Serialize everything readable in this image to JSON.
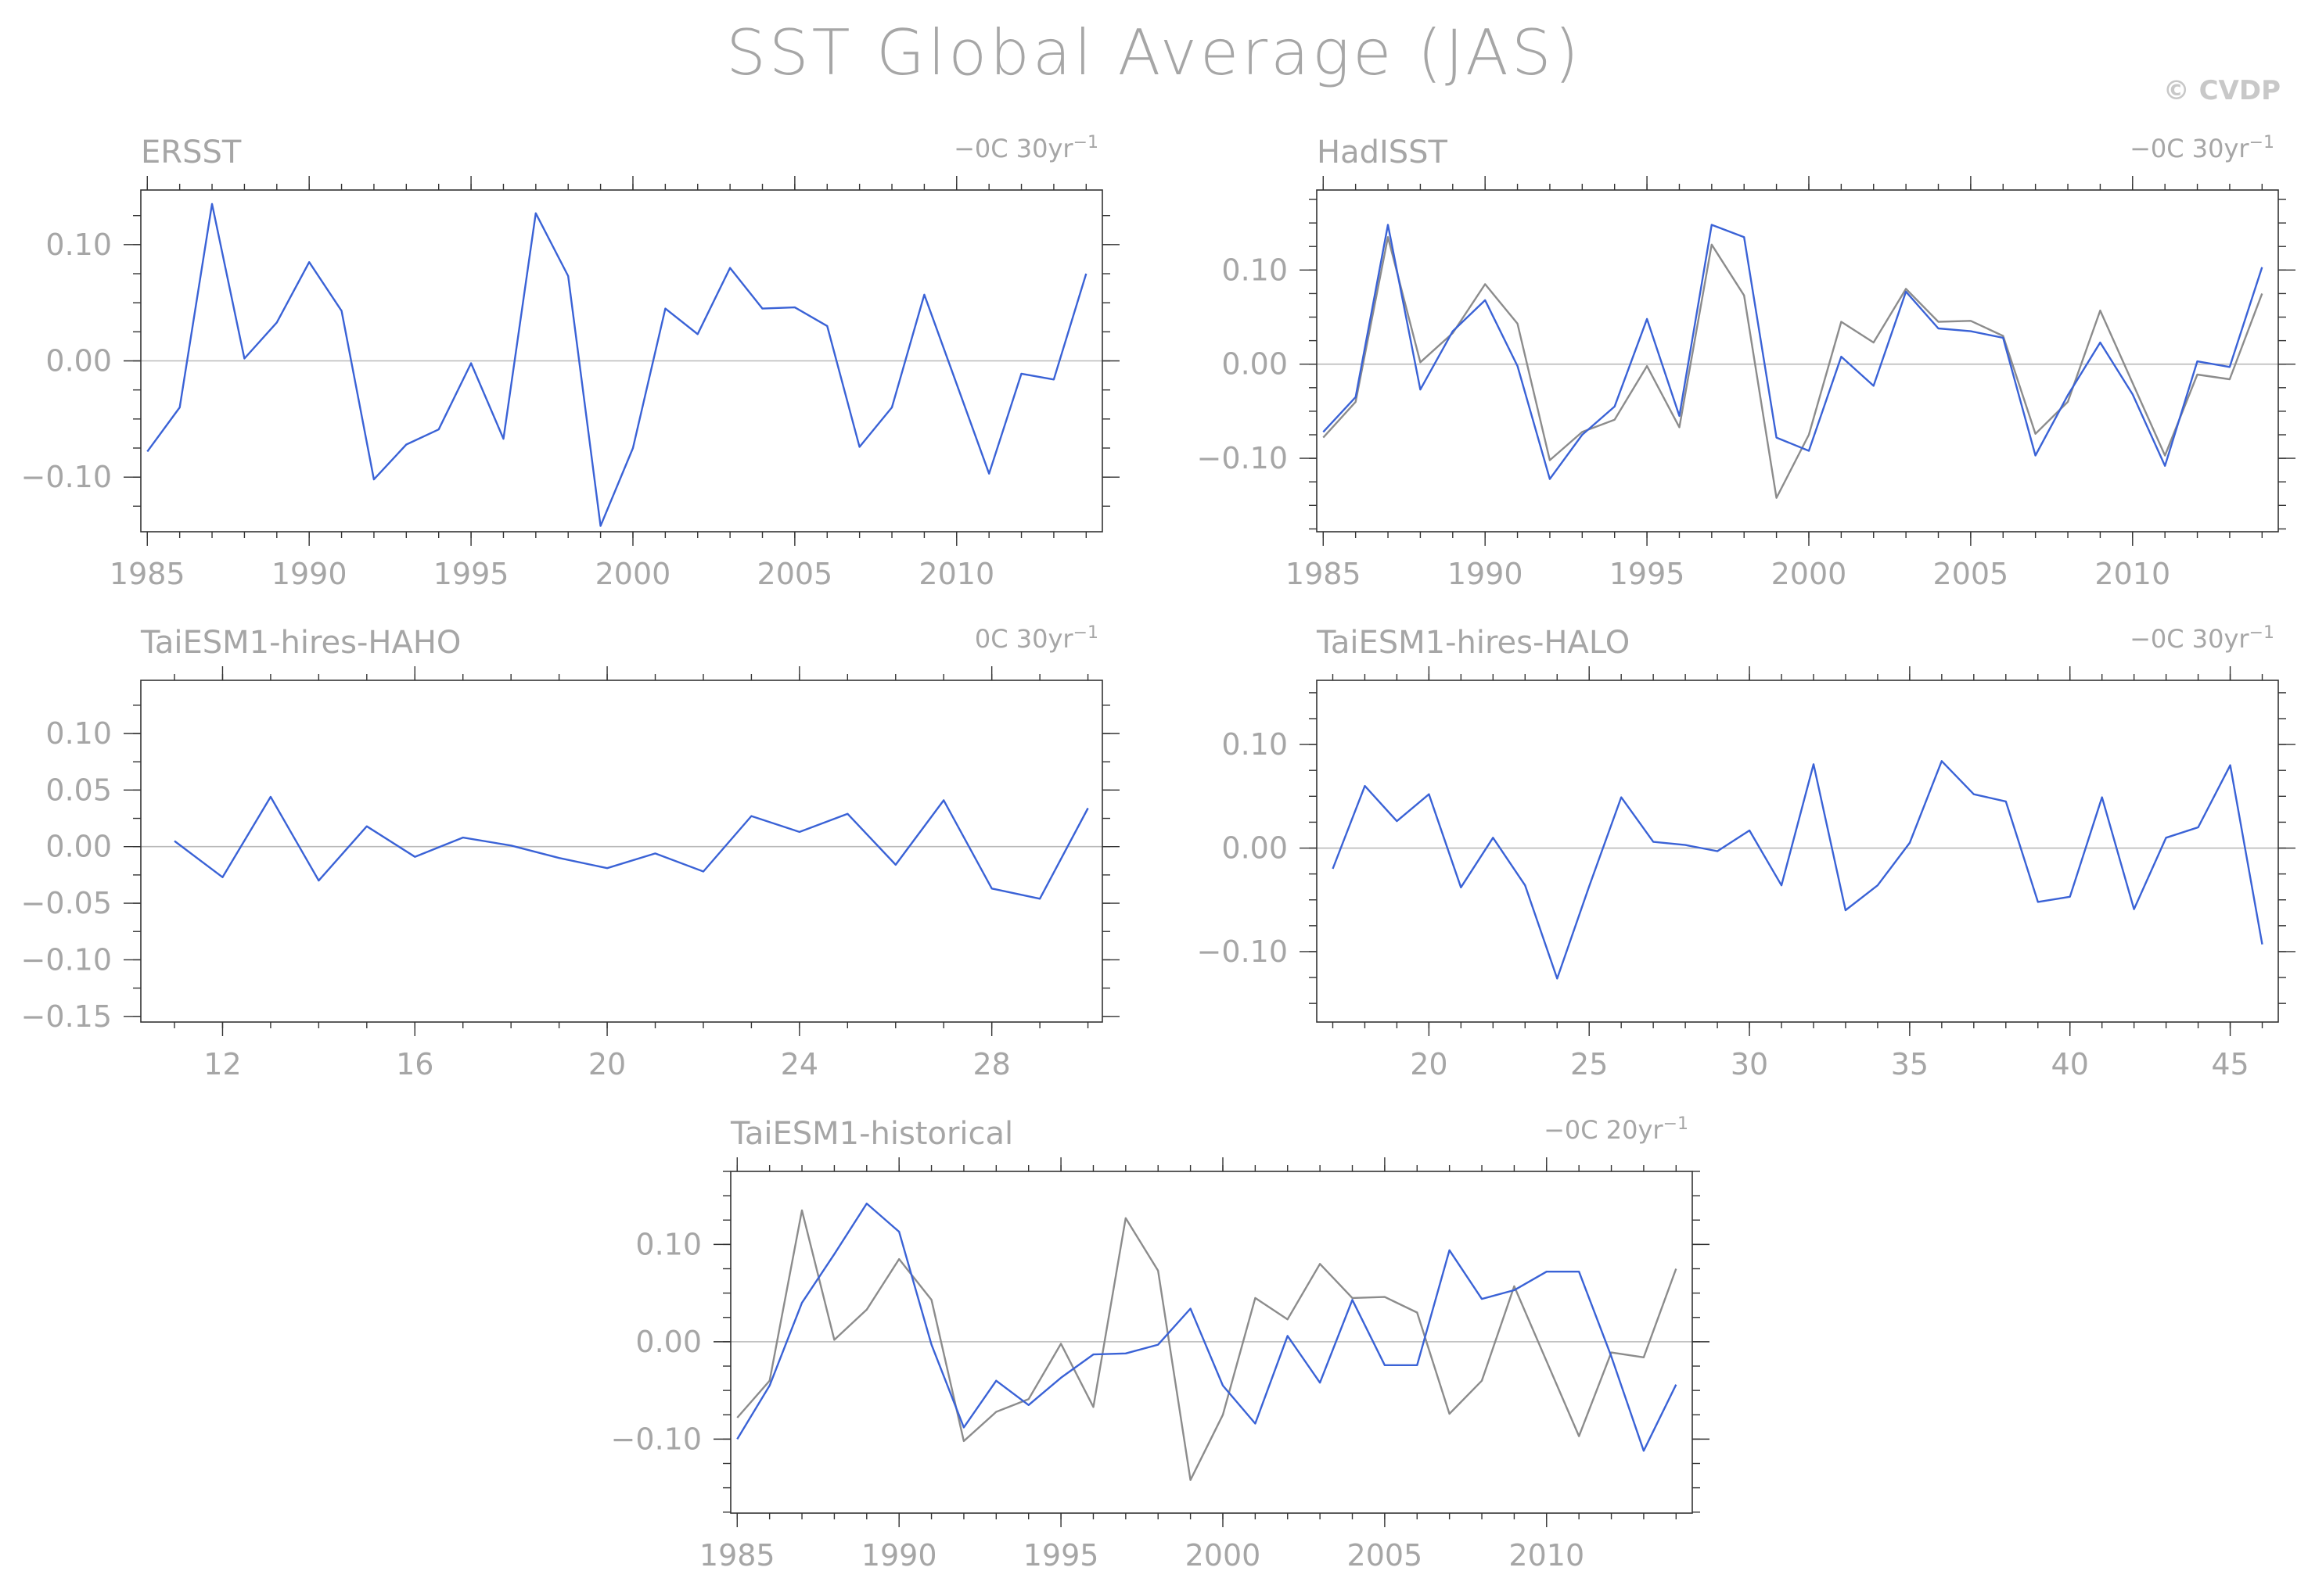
{
  "figure": {
    "title": "SST Global Average (JAS)",
    "watermark": "© CVDP"
  },
  "colors": {
    "model": "#3a62d6",
    "observation": "#8c8c8c",
    "zero_line": "#b9b9b9",
    "text": "#a6a6a6",
    "axes": "#333333"
  },
  "chart_data": [
    {
      "type": "line",
      "title": "ERSST",
      "trend_label": "-0C 30yr",
      "trend_superscript": "-1",
      "xlabel": "",
      "ylabel": "",
      "xlim": [
        1984.8,
        2014.5
      ],
      "ylim": [
        -0.147,
        0.147
      ],
      "xticks": [
        1985,
        1990,
        1995,
        2000,
        2005,
        2010
      ],
      "xtick_labels": [
        "1985",
        "1990",
        "1995",
        "2000",
        "2005",
        "2010"
      ],
      "yticks": [
        -0.1,
        0.0,
        0.1
      ],
      "ytick_labels": [
        "-0.10",
        "0.00",
        "0.10"
      ],
      "zero_line": true,
      "grid": false,
      "series": [
        {
          "role": "model",
          "x": [
            1985,
            1986,
            1987,
            1988,
            1989,
            1990,
            1991,
            1992,
            1993,
            1994,
            1995,
            1996,
            1997,
            1998,
            1999,
            2000,
            2001,
            2002,
            2003,
            2004,
            2005,
            2006,
            2007,
            2008,
            2009,
            2010,
            2011,
            2012,
            2013,
            2014
          ],
          "values": [
            -0.078,
            -0.04,
            0.135,
            0.002,
            0.033,
            0.085,
            0.043,
            -0.102,
            -0.072,
            -0.059,
            -0.002,
            -0.067,
            0.127,
            0.073,
            -0.142,
            -0.075,
            0.045,
            0.023,
            0.08,
            0.045,
            0.046,
            0.03,
            -0.074,
            -0.04,
            0.057,
            -0.02,
            -0.097,
            -0.011,
            -0.016,
            0.075
          ]
        }
      ]
    },
    {
      "type": "line",
      "title": "HadISST",
      "trend_label": "-0C 30yr",
      "trend_superscript": "-1",
      "xlabel": "",
      "ylabel": "",
      "xlim": [
        1984.8,
        2014.5
      ],
      "ylim": [
        -0.178,
        0.185
      ],
      "xticks": [
        1985,
        1990,
        1995,
        2000,
        2005,
        2010
      ],
      "xtick_labels": [
        "1985",
        "1990",
        "1995",
        "2000",
        "2005",
        "2010"
      ],
      "yticks": [
        -0.1,
        0.0,
        0.1
      ],
      "ytick_labels": [
        "-0.10",
        "0.00",
        "0.10"
      ],
      "zero_line": true,
      "grid": false,
      "series": [
        {
          "role": "observation",
          "x": [
            1985,
            1986,
            1987,
            1988,
            1989,
            1990,
            1991,
            1992,
            1993,
            1994,
            1995,
            1996,
            1997,
            1998,
            1999,
            2000,
            2001,
            2002,
            2003,
            2004,
            2005,
            2006,
            2007,
            2008,
            2009,
            2010,
            2011,
            2012,
            2013,
            2014
          ],
          "values": [
            -0.078,
            -0.04,
            0.135,
            0.002,
            0.033,
            0.085,
            0.043,
            -0.102,
            -0.072,
            -0.059,
            -0.002,
            -0.067,
            0.127,
            0.073,
            -0.142,
            -0.075,
            0.045,
            0.023,
            0.08,
            0.045,
            0.046,
            0.03,
            -0.074,
            -0.04,
            0.057,
            -0.02,
            -0.097,
            -0.011,
            -0.016,
            0.075
          ]
        },
        {
          "role": "model",
          "x": [
            1985,
            1986,
            1987,
            1988,
            1989,
            1990,
            1991,
            1992,
            1993,
            1994,
            1995,
            1996,
            1997,
            1998,
            1999,
            2000,
            2001,
            2002,
            2003,
            2004,
            2005,
            2006,
            2007,
            2008,
            2009,
            2010,
            2011,
            2012,
            2013,
            2014
          ],
          "values": [
            -0.072,
            -0.035,
            0.148,
            -0.027,
            0.035,
            0.068,
            -0.002,
            -0.122,
            -0.075,
            -0.045,
            0.048,
            -0.055,
            0.148,
            0.135,
            -0.078,
            -0.092,
            0.008,
            -0.023,
            0.077,
            0.038,
            0.035,
            0.028,
            -0.097,
            -0.033,
            0.023,
            -0.032,
            -0.108,
            0.003,
            -0.003,
            0.103
          ]
        }
      ]
    },
    {
      "type": "line",
      "title": "TaiESM1-hires-HAHO",
      "trend_label": "0C 30yr",
      "trend_superscript": "-1",
      "xlabel": "",
      "ylabel": "",
      "xlim": [
        10.3,
        30.3
      ],
      "ylim": [
        -0.155,
        0.147
      ],
      "xticks": [
        12,
        16,
        20,
        24,
        28
      ],
      "xtick_labels": [
        "12",
        "16",
        "20",
        "24",
        "28"
      ],
      "yticks": [
        -0.15,
        -0.1,
        -0.05,
        0.0,
        0.05,
        0.1
      ],
      "ytick_labels": [
        "-0.15",
        "-0.10",
        "-0.05",
        "0.00",
        "0.05",
        "0.10"
      ],
      "zero_line": true,
      "grid": false,
      "series": [
        {
          "role": "model",
          "x": [
            11,
            12,
            13,
            14,
            15,
            16,
            17,
            18,
            19,
            20,
            21,
            22,
            23,
            24,
            25,
            26,
            27,
            28,
            29,
            30
          ],
          "values": [
            0.005,
            -0.027,
            0.044,
            -0.03,
            0.018,
            -0.009,
            0.008,
            0.001,
            -0.01,
            -0.019,
            -0.006,
            -0.022,
            0.027,
            0.013,
            0.029,
            -0.016,
            0.041,
            -0.037,
            -0.046,
            0.034
          ]
        }
      ]
    },
    {
      "type": "line",
      "title": "TaiESM1-hires-HALO",
      "trend_label": "-0C 30yr",
      "trend_superscript": "-1",
      "xlabel": "",
      "ylabel": "",
      "xlim": [
        16.5,
        46.5
      ],
      "ylim": [
        -0.168,
        0.162
      ],
      "xticks": [
        20,
        25,
        30,
        35,
        40,
        45
      ],
      "xtick_labels": [
        "20",
        "25",
        "30",
        "35",
        "40",
        "45"
      ],
      "yticks": [
        -0.1,
        0.0,
        0.1
      ],
      "ytick_labels": [
        "-0.10",
        "0.00",
        "0.10"
      ],
      "zero_line": true,
      "grid": false,
      "series": [
        {
          "role": "model",
          "x": [
            17,
            18,
            19,
            20,
            21,
            22,
            23,
            24,
            25,
            26,
            27,
            28,
            29,
            30,
            31,
            32,
            33,
            34,
            35,
            36,
            37,
            38,
            39,
            40,
            41,
            42,
            43,
            44,
            45,
            46
          ],
          "values": [
            -0.02,
            0.06,
            0.026,
            0.052,
            -0.038,
            0.01,
            -0.036,
            -0.126,
            -0.037,
            0.049,
            0.006,
            0.003,
            -0.003,
            0.017,
            -0.036,
            0.081,
            -0.06,
            -0.036,
            0.005,
            0.084,
            0.052,
            0.045,
            -0.052,
            -0.047,
            0.049,
            -0.059,
            0.01,
            0.02,
            0.08,
            -0.093
          ]
        }
      ]
    },
    {
      "type": "line",
      "title": "TaiESM1-historical",
      "trend_label": "-0C 20yr",
      "trend_superscript": "-1",
      "xlabel": "",
      "ylabel": "",
      "xlim": [
        1984.8,
        2014.5
      ],
      "ylim": [
        -0.176,
        0.175
      ],
      "xticks": [
        1985,
        1990,
        1995,
        2000,
        2005,
        2010
      ],
      "xtick_labels": [
        "1985",
        "1990",
        "1995",
        "2000",
        "2005",
        "2010"
      ],
      "yticks": [
        -0.1,
        0.0,
        0.1
      ],
      "ytick_labels": [
        "-0.10",
        "0.00",
        "0.10"
      ],
      "zero_line": true,
      "grid": false,
      "series": [
        {
          "role": "observation",
          "x": [
            1985,
            1986,
            1987,
            1988,
            1989,
            1990,
            1991,
            1992,
            1993,
            1994,
            1995,
            1996,
            1997,
            1998,
            1999,
            2000,
            2001,
            2002,
            2003,
            2004,
            2005,
            2006,
            2007,
            2008,
            2009,
            2010,
            2011,
            2012,
            2013,
            2014
          ],
          "values": [
            -0.078,
            -0.04,
            0.135,
            0.002,
            0.033,
            0.085,
            0.043,
            -0.102,
            -0.072,
            -0.059,
            -0.002,
            -0.067,
            0.127,
            0.073,
            -0.142,
            -0.075,
            0.045,
            0.023,
            0.08,
            0.045,
            0.046,
            0.03,
            -0.074,
            -0.04,
            0.057,
            -0.02,
            -0.097,
            -0.011,
            -0.016,
            0.075
          ]
        },
        {
          "role": "model",
          "x": [
            1985,
            1986,
            1987,
            1988,
            1989,
            1990,
            1991,
            1992,
            1993,
            1994,
            1995,
            1996,
            1997,
            1998,
            1999,
            2000,
            2001,
            2002,
            2003,
            2004,
            2005,
            2006,
            2007,
            2008,
            2009,
            2010,
            2011,
            2012,
            2013,
            2014
          ],
          "values": [
            -0.1,
            -0.045,
            0.04,
            0.09,
            0.142,
            0.113,
            -0.003,
            -0.088,
            -0.04,
            -0.065,
            -0.037,
            -0.013,
            -0.012,
            -0.003,
            0.034,
            -0.045,
            -0.084,
            0.006,
            -0.042,
            0.043,
            -0.024,
            -0.024,
            0.094,
            0.044,
            0.053,
            0.072,
            0.072,
            -0.015,
            -0.112,
            -0.044
          ]
        }
      ]
    }
  ]
}
